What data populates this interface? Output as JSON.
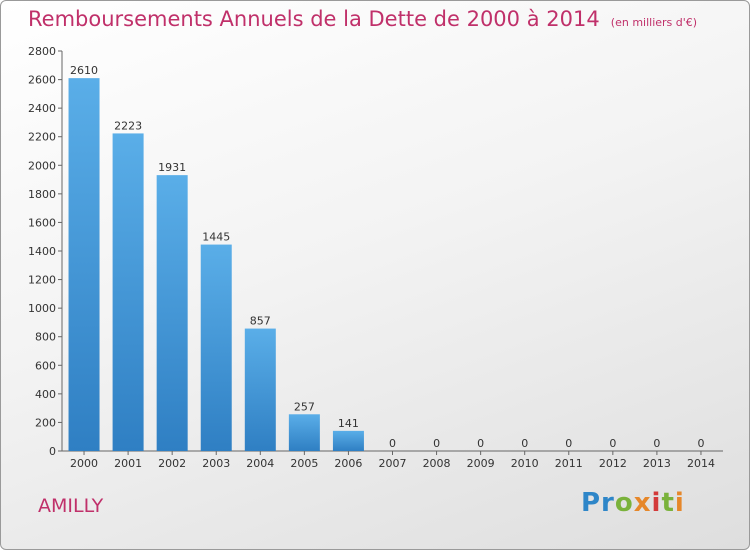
{
  "chart_data": {
    "type": "bar",
    "title": "Remboursements Annuels de la Dette de 2000 à 2014",
    "unit_note": "(en milliers d'€)",
    "categories": [
      "2000",
      "2001",
      "2002",
      "2003",
      "2004",
      "2005",
      "2006",
      "2007",
      "2008",
      "2009",
      "2010",
      "2011",
      "2012",
      "2013",
      "2014"
    ],
    "values": [
      2610,
      2223,
      1931,
      1445,
      857,
      257,
      141,
      0,
      0,
      0,
      0,
      0,
      0,
      0,
      0
    ],
    "ylim": [
      0,
      2800
    ],
    "yticks": [
      0,
      200,
      400,
      600,
      800,
      1000,
      1200,
      1400,
      1600,
      1800,
      2000,
      2200,
      2400,
      2600,
      2800
    ],
    "grid": false,
    "bar_color": "#3d8fd3"
  },
  "footer": {
    "city": "AMILLY",
    "logo": "Proxiti"
  }
}
